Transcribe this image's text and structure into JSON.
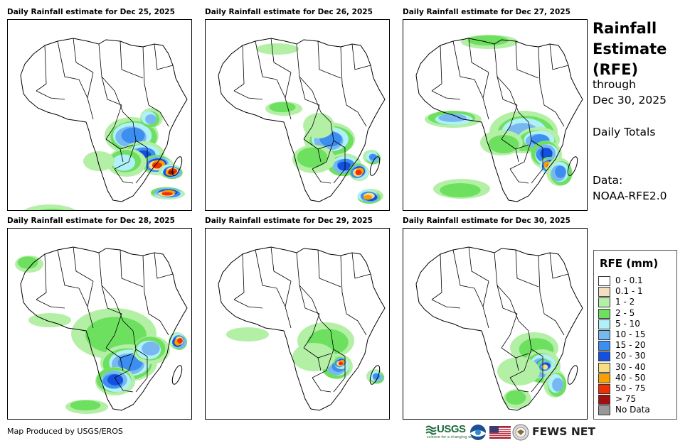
{
  "panels": [
    {
      "title": "Daily Rainfall estimate for Dec 25, 2025"
    },
    {
      "title": "Daily Rainfall estimate for Dec 26, 2025"
    },
    {
      "title": "Daily Rainfall estimate for Dec 27, 2025"
    },
    {
      "title": "Daily Rainfall estimate for Dec 28, 2025"
    },
    {
      "title": "Daily Rainfall estimate for Dec 29, 2025"
    },
    {
      "title": "Daily Rainfall estimate for Dec 30, 2025"
    }
  ],
  "side": {
    "title_lines": [
      "Rainfall",
      "Estimate",
      "(RFE)"
    ],
    "through": "through",
    "end_date": "Dec 30, 2025",
    "totals": "Daily Totals",
    "data_label": "Data:",
    "data_source": "NOAA-RFE2.0"
  },
  "legend": {
    "title": "RFE (mm)",
    "items": [
      {
        "label": "0 - 0.1",
        "color": "#ffffff"
      },
      {
        "label": "0.1 - 1",
        "color": "#f2dfc2"
      },
      {
        "label": "1 - 2",
        "color": "#b4efa6"
      },
      {
        "label": "2 - 5",
        "color": "#6ee060"
      },
      {
        "label": "5 - 10",
        "color": "#b0f0f8"
      },
      {
        "label": "10 - 15",
        "color": "#78b8f0"
      },
      {
        "label": "15 - 20",
        "color": "#3c8ef0"
      },
      {
        "label": "20 - 30",
        "color": "#1450e0"
      },
      {
        "label": "30 - 40",
        "color": "#f8de80"
      },
      {
        "label": "40 - 50",
        "color": "#f8a000"
      },
      {
        "label": "50 - 75",
        "color": "#f03000"
      },
      {
        "label": "> 75",
        "color": "#a01010"
      },
      {
        "label": "No Data",
        "color": "#999999"
      }
    ]
  },
  "footer": {
    "credit": "Map Produced by USGS/EROS",
    "usgs_logo": "USGS",
    "usgs_tagline": "science for a changing world",
    "fews_logo": "FEWS NET"
  }
}
